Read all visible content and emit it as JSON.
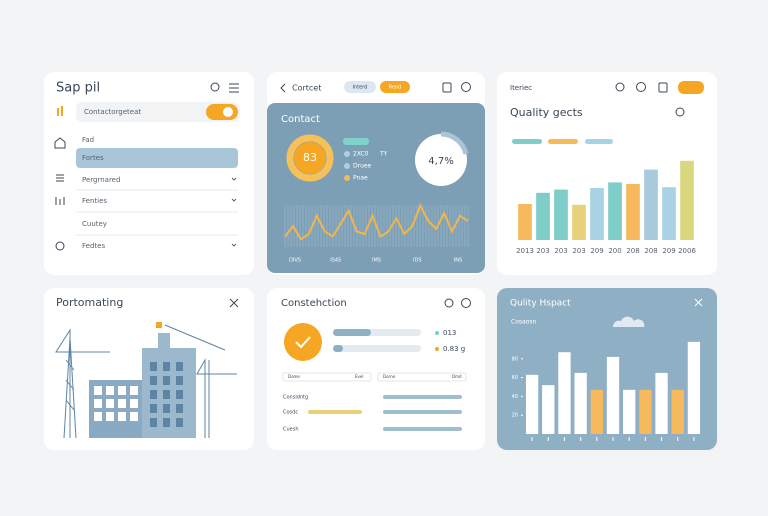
{
  "sidebar": {
    "title": "Sap pil",
    "search": "Contactorgeteat",
    "items": [
      "Fad",
      "Fortes",
      "Pergrnared",
      "Fenties",
      "Cuutey",
      "Fedtes"
    ]
  },
  "contact": {
    "back": "Cortcet",
    "pills": [
      "Interd",
      "Rend"
    ],
    "panel_title": "Contact",
    "donut_label": "83",
    "legend": [
      "2XC0",
      "Druee",
      "Pnae"
    ],
    "side_label": "TY",
    "percent": "4,7%",
    "chart_data": {
      "type": "line",
      "color": "#f3b54a",
      "ylim": [
        0,
        100
      ],
      "x": [
        0,
        1,
        2,
        3,
        4,
        5,
        6,
        7,
        8,
        9,
        10,
        11,
        12,
        13,
        14,
        15,
        16,
        17,
        18,
        19,
        20,
        21,
        22,
        23
      ],
      "xlim": [
        0,
        23
      ],
      "values": [
        20,
        40,
        15,
        25,
        60,
        30,
        20,
        45,
        70,
        30,
        25,
        60,
        20,
        30,
        55,
        25,
        40,
        80,
        50,
        35,
        65,
        30,
        60,
        50
      ],
      "x_labels": [
        "DIVS",
        "IS45",
        "IMS",
        "IDS",
        "INS"
      ]
    }
  },
  "quality": {
    "tag": "Iteriec",
    "title": "Quality gects",
    "chart_data": {
      "type": "bar",
      "ylim": [
        0,
        100
      ],
      "categories": [
        "2013",
        "203",
        "203",
        "203",
        "209",
        "200",
        "208",
        "208",
        "209",
        "2006"
      ],
      "values": [
        45,
        59,
        63,
        44,
        65,
        72,
        70,
        88,
        66,
        99
      ],
      "colors": [
        "#f6b95c",
        "#7fcdc9",
        "#7fcdc9",
        "#e5d27a",
        "#a9d2e4",
        "#7fcdc9",
        "#f6b95c",
        "#a9c9dc",
        "#a9d2e4",
        "#d9d87f"
      ]
    }
  },
  "portomating": {
    "title": "Portomating"
  },
  "construction": {
    "title": "Constehction",
    "stats": [
      "013",
      "0.83 g"
    ],
    "header": [
      "Dome",
      "Evel",
      "Dorne",
      "Dmd"
    ],
    "rows": [
      "Consldntg",
      "Cosdc",
      "Cuesh"
    ]
  },
  "impact": {
    "title": "Qulity Hspact",
    "subtitle": "Cosaosn",
    "chart_data": {
      "type": "bar",
      "ylim": [
        0,
        100
      ],
      "yticks": [
        20,
        40,
        60,
        80
      ],
      "values": [
        63,
        52,
        87,
        65,
        47,
        82,
        47,
        47,
        65,
        47,
        98
      ],
      "colors": [
        "#ffffff",
        "#ffffff",
        "#ffffff",
        "#ffffff",
        "#f6b95c",
        "#ffffff",
        "#ffffff",
        "#f6b95c",
        "#ffffff",
        "#f6b95c",
        "#ffffff"
      ]
    }
  }
}
